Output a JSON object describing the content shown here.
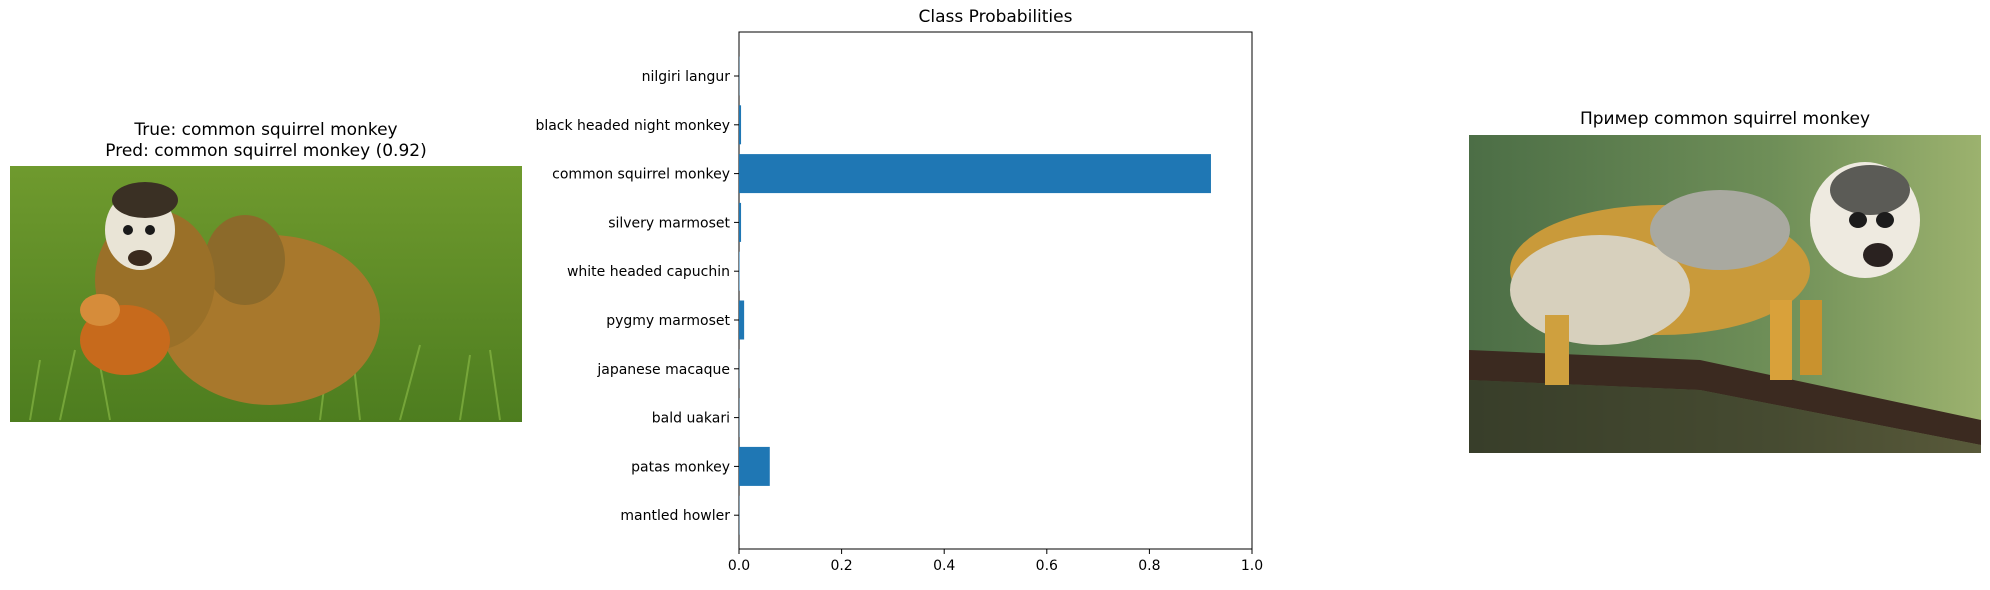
{
  "left_panel": {
    "title_line1": "True: common squirrel monkey",
    "title_line2": "Pred: common squirrel monkey (0.92)",
    "image_alt": "photo of a common squirrel monkey carrying a baby in grass"
  },
  "right_panel": {
    "title": "Пример common squirrel monkey",
    "image_alt": "photo of a common squirrel monkey on a branch"
  },
  "chart_data": {
    "type": "bar",
    "orientation": "horizontal",
    "title": "Class Probabilities",
    "xlabel": "",
    "ylabel": "",
    "xlim": [
      0,
      1.0
    ],
    "x_ticks": [
      "0.0",
      "0.2",
      "0.4",
      "0.6",
      "0.8",
      "1.0"
    ],
    "categories": [
      "nilgiri langur",
      "black headed night monkey",
      "common squirrel monkey",
      "silvery marmoset",
      "white headed capuchin",
      "pygmy marmoset",
      "japanese macaque",
      "bald uakari",
      "patas monkey",
      "mantled howler"
    ],
    "values": [
      0.0005,
      0.004,
      0.92,
      0.004,
      0.001,
      0.01,
      0.0005,
      0.0005,
      0.06,
      0.0005
    ],
    "bar_color": "#1f77b4",
    "grid": false
  }
}
